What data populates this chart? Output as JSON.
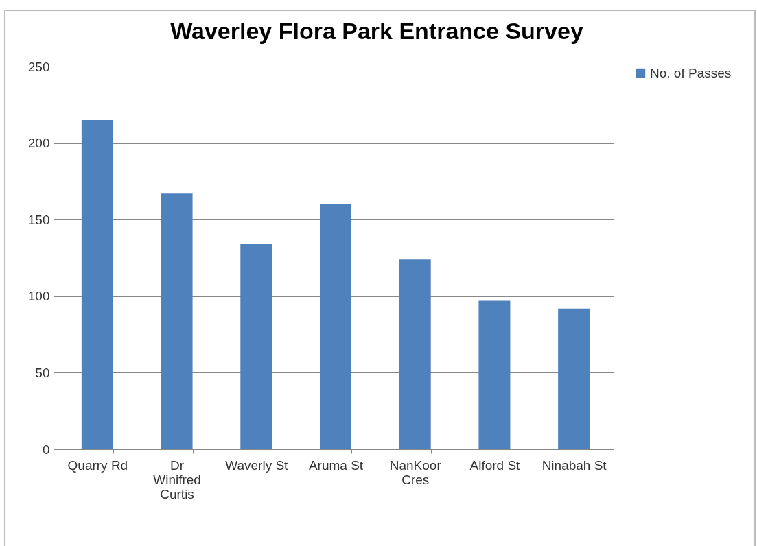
{
  "chart_data": {
    "type": "bar",
    "title": "Waverley Flora Park Entrance Survey",
    "categories": [
      "Quarry Rd",
      "Dr Winifred Curtis",
      "Waverly St",
      "Aruma St",
      "NanKoor Cres",
      "Alford St",
      "Ninabah St"
    ],
    "series": [
      {
        "name": "No. of Passes",
        "color": "#4f81bd",
        "values": [
          215,
          167,
          134,
          160,
          124,
          97,
          92
        ]
      }
    ],
    "ylim": [
      0,
      250
    ],
    "yticks": [
      0,
      50,
      100,
      150,
      200,
      250
    ],
    "grid": "y",
    "legend": "right"
  }
}
